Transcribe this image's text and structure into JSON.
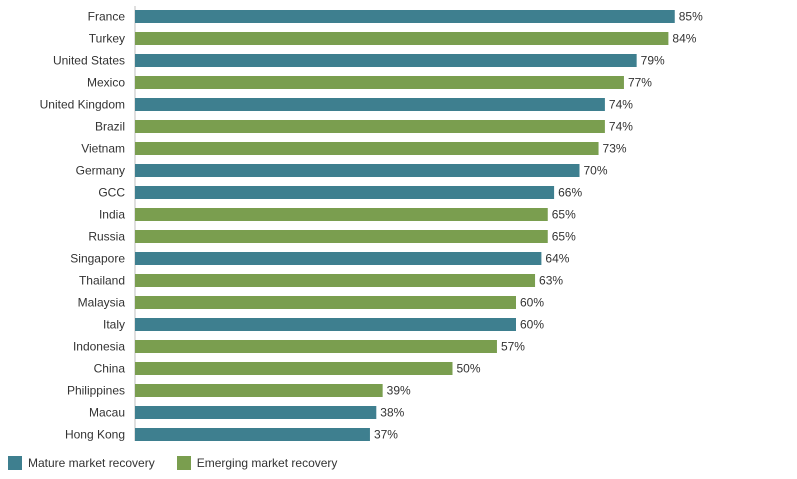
{
  "chart_data": {
    "type": "bar",
    "orientation": "horizontal",
    "title": "",
    "xlabel": "",
    "ylabel": "",
    "xlim": [
      0,
      100
    ],
    "grid": false,
    "legend_position": "bottom-left",
    "value_suffix": "%",
    "colors": {
      "mature": "#3e7f8f",
      "emerging": "#7a9e4f"
    },
    "legend": [
      {
        "key": "mature",
        "label": "Mature market recovery"
      },
      {
        "key": "emerging",
        "label": "Emerging market recovery"
      }
    ],
    "categories": [
      "France",
      "Turkey",
      "United States",
      "Mexico",
      "United Kingdom",
      "Brazil",
      "Vietnam",
      "Germany",
      "GCC",
      "India",
      "Russia",
      "Singapore",
      "Thailand",
      "Malaysia",
      "Italy",
      "Indonesia",
      "China",
      "Philippines",
      "Macau",
      "Hong Kong"
    ],
    "values": [
      85,
      84,
      79,
      77,
      74,
      74,
      73,
      70,
      66,
      65,
      65,
      64,
      63,
      60,
      60,
      57,
      50,
      39,
      38,
      37
    ],
    "value_labels": [
      "85%",
      "84%",
      "79%",
      "77%",
      "74%",
      "74%",
      "73%",
      "70%",
      "66%",
      "65%",
      "65%",
      "64%",
      "63%",
      "60%",
      "60%",
      "57%",
      "50%",
      "39%",
      "38%",
      "37%"
    ],
    "groups": [
      "mature",
      "emerging",
      "mature",
      "emerging",
      "mature",
      "emerging",
      "emerging",
      "mature",
      "mature",
      "emerging",
      "emerging",
      "mature",
      "emerging",
      "emerging",
      "mature",
      "emerging",
      "emerging",
      "emerging",
      "mature",
      "mature"
    ]
  }
}
